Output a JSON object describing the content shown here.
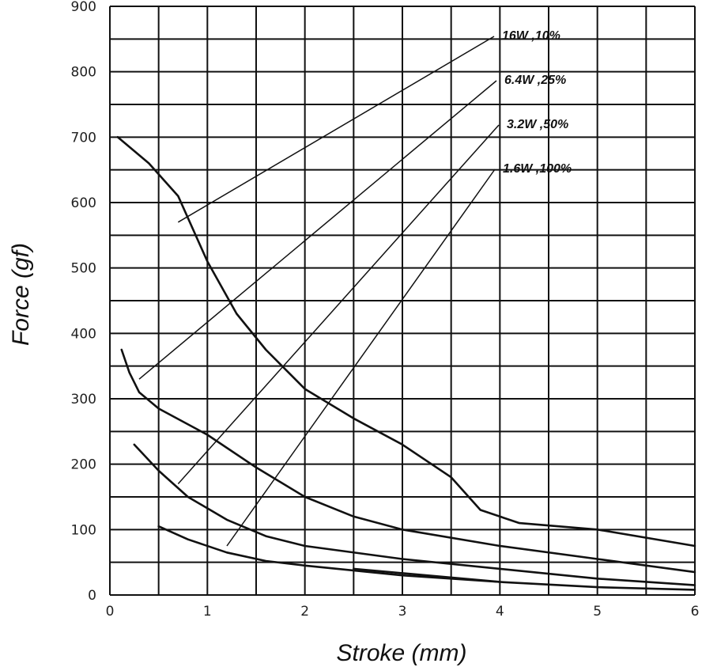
{
  "chart_data": {
    "type": "line",
    "title": "",
    "xlabel": "Stroke (mm)",
    "ylabel": "Force (gf)",
    "xlim": [
      0,
      6
    ],
    "ylim": [
      0,
      900
    ],
    "grid": true,
    "x_ticks": [
      0,
      0.5,
      1,
      1.5,
      2,
      2.5,
      3,
      3.5,
      4,
      4.5,
      5,
      5.5,
      6
    ],
    "x_tick_labels": [
      "0",
      "1",
      "2",
      "3",
      "4",
      "5",
      "6"
    ],
    "y_ticks": [
      0,
      50,
      100,
      150,
      200,
      250,
      300,
      350,
      400,
      450,
      500,
      550,
      600,
      650,
      700,
      750,
      800,
      850,
      900
    ],
    "y_tick_labels": [
      "0",
      "100",
      "200",
      "300",
      "400",
      "500",
      "600",
      "700",
      "800",
      "900"
    ],
    "series": [
      {
        "name": "16W ,10%",
        "points": [
          [
            0.08,
            700
          ],
          [
            0.4,
            660
          ],
          [
            0.7,
            610
          ],
          [
            1.0,
            510
          ],
          [
            1.3,
            430
          ],
          [
            1.6,
            375
          ],
          [
            1.8,
            345
          ],
          [
            2.0,
            315
          ],
          [
            2.5,
            270
          ],
          [
            3.0,
            230
          ],
          [
            3.5,
            180
          ],
          [
            3.8,
            130
          ],
          [
            4.2,
            110
          ],
          [
            5.0,
            100
          ],
          [
            6.0,
            75
          ]
        ],
        "label_at": [
          0.7,
          570
        ]
      },
      {
        "name": "6.4W ,25%",
        "points": [
          [
            0.12,
            375
          ],
          [
            0.2,
            340
          ],
          [
            0.3,
            310
          ],
          [
            0.5,
            285
          ],
          [
            1.0,
            245
          ],
          [
            1.5,
            195
          ],
          [
            2.0,
            150
          ],
          [
            2.5,
            120
          ],
          [
            3.0,
            100
          ],
          [
            4.0,
            75
          ],
          [
            5.0,
            55
          ],
          [
            6.0,
            35
          ]
        ],
        "label_at": [
          0.3,
          330
        ]
      },
      {
        "name": "3.2W ,50%",
        "points": [
          [
            0.25,
            230
          ],
          [
            0.5,
            190
          ],
          [
            0.8,
            150
          ],
          [
            1.2,
            115
          ],
          [
            1.6,
            90
          ],
          [
            2.0,
            75
          ],
          [
            3.0,
            55
          ],
          [
            4.0,
            40
          ],
          [
            5.0,
            25
          ],
          [
            6.0,
            15
          ]
        ],
        "label_at": [
          0.7,
          170
        ]
      },
      {
        "name": "1.6W ,100%",
        "points": [
          [
            0.5,
            105
          ],
          [
            0.8,
            85
          ],
          [
            1.2,
            65
          ],
          [
            1.6,
            52
          ],
          [
            2.0,
            45
          ],
          [
            3.0,
            30
          ],
          [
            4.0,
            20
          ],
          [
            5.0,
            12
          ],
          [
            6.0,
            8
          ]
        ],
        "label_at": [
          1.2,
          75
        ]
      }
    ],
    "extra_segment": [
      [
        2.5,
        40
      ],
      [
        4.0,
        20
      ]
    ]
  }
}
